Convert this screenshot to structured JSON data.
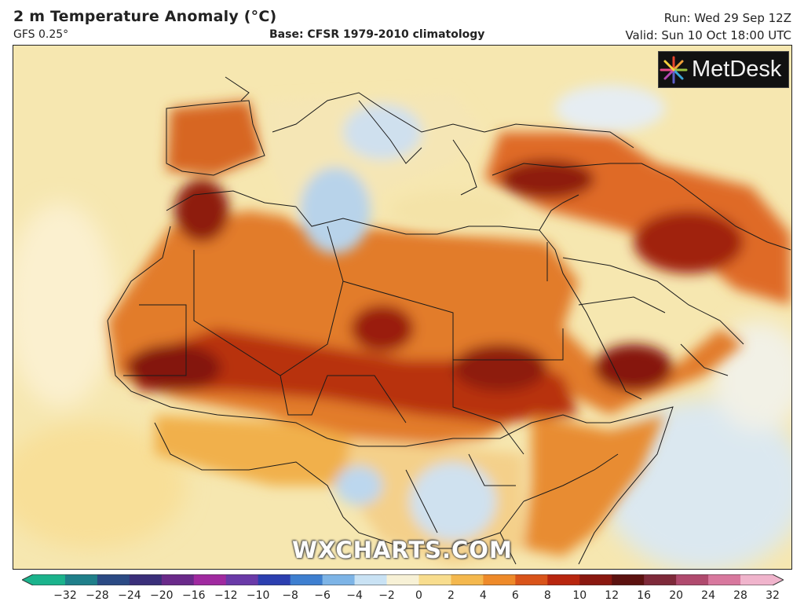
{
  "header": {
    "title": "2 m Temperature Anomaly (°C)",
    "model": "GFS 0.25°",
    "base": "Base: CFSR 1979-2010 climatology",
    "run": "Run: Wed 29 Sep 12Z",
    "valid": "Valid: Sun 10 Oct 18:00 UTC"
  },
  "logo": {
    "text": "MetDesk",
    "icon": "starburst-logo-icon"
  },
  "watermark": "WXCHARTS.COM",
  "colorbar": {
    "ticks": [
      "−32",
      "−28",
      "−24",
      "−20",
      "−16",
      "−12",
      "−10",
      "−8",
      "−6",
      "−4",
      "−2",
      "0",
      "2",
      "4",
      "6",
      "8",
      "10",
      "12",
      "16",
      "20",
      "24",
      "28",
      "32"
    ],
    "colors": [
      "#1bb38c",
      "#1f7f8a",
      "#2b4a84",
      "#3a2f7a",
      "#6a2a8a",
      "#a02aa0",
      "#6a3aa8",
      "#2c3fb0",
      "#3e7fd0",
      "#7db4e6",
      "#c9e2f4",
      "#f7f1d6",
      "#f8dd8e",
      "#f4b84e",
      "#ee8a2a",
      "#d9541a",
      "#b8260f",
      "#8a1810",
      "#5c1210",
      "#7e2a3a",
      "#b04a6e",
      "#d8789e",
      "#f0b4cc"
    ]
  },
  "map": {
    "region": "North Africa and Middle East",
    "colors": {
      "ocean": "#f6e7b0",
      "warm": "#e9832c",
      "hot": "#c3410f",
      "very_hot": "#7a150d",
      "cool": "#b7d6ee",
      "neutral": "#f7eec8"
    }
  }
}
